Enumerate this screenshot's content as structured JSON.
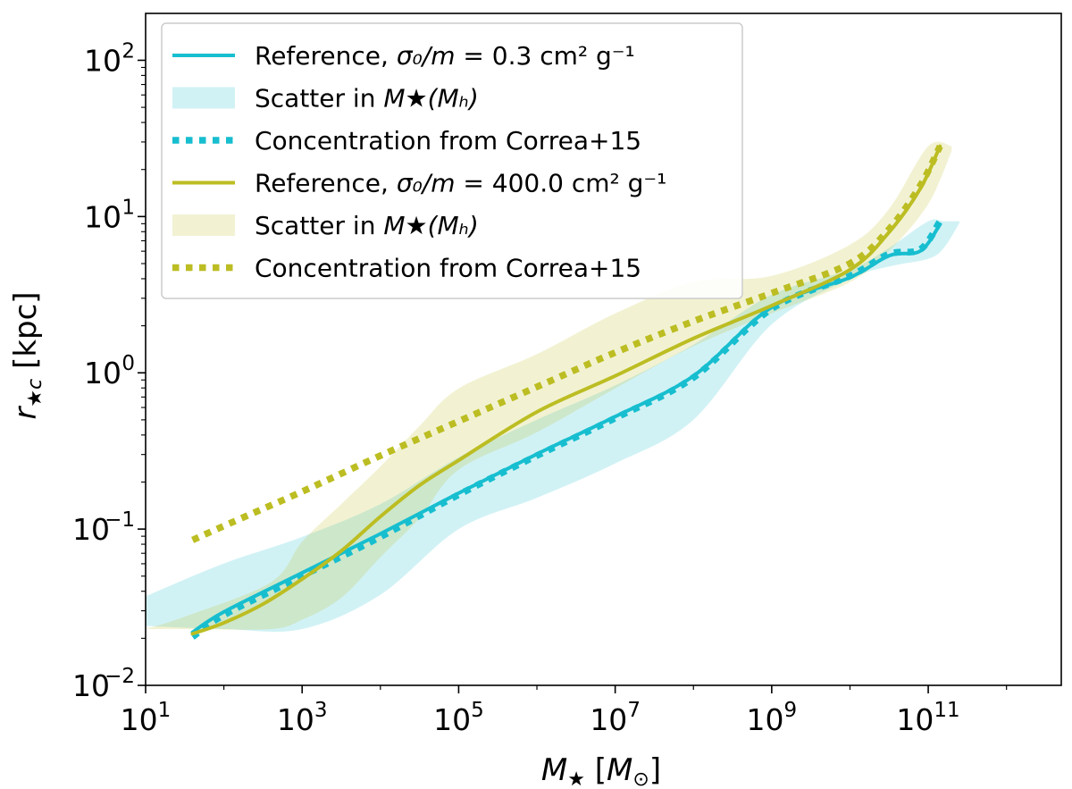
{
  "chart_data": {
    "type": "line",
    "xscale": "log",
    "yscale": "log",
    "xlim_exp": [
      1,
      12.7
    ],
    "ylim_exp": [
      -2,
      2.3
    ],
    "xlabel": "M★ [M⊙]",
    "ylabel": "r★c [kpc]",
    "xticks": [
      {
        "base": "10",
        "exp": "1",
        "value": 10
      },
      {
        "base": "10",
        "exp": "3",
        "value": 1000
      },
      {
        "base": "10",
        "exp": "5",
        "value": 100000
      },
      {
        "base": "10",
        "exp": "7",
        "value": 10000000
      },
      {
        "base": "10",
        "exp": "9",
        "value": 1000000000
      },
      {
        "base": "10",
        "exp": "11",
        "value": 100000000000
      }
    ],
    "yticks": [
      {
        "base": "10",
        "exp": "−2",
        "value": 0.01
      },
      {
        "base": "10",
        "exp": "−1",
        "value": 0.1
      },
      {
        "base": "10",
        "exp": "0",
        "value": 1
      },
      {
        "base": "10",
        "exp": "1",
        "value": 10
      },
      {
        "base": "10",
        "exp": "2",
        "value": 100
      }
    ],
    "colors": {
      "cyan": "#17becf",
      "olive": "#bcbd22"
    },
    "legend": {
      "position": "top-left",
      "entries": [
        {
          "pre": "Reference, ",
          "math": "σ₀/m",
          "post": " = 0.3 cm² g⁻¹",
          "style": "solid",
          "color": "#17becf"
        },
        {
          "pre": "Scatter in ",
          "math": "M★(Mₕ)",
          "post": "",
          "style": "band",
          "color": "#17becf"
        },
        {
          "pre": "Concentration from Correa+15",
          "math": "",
          "post": "",
          "style": "dotted",
          "color": "#17becf"
        },
        {
          "pre": "Reference, ",
          "math": "σ₀/m",
          "post": " = 400.0 cm² g⁻¹",
          "style": "solid",
          "color": "#bcbd22"
        },
        {
          "pre": "Scatter in ",
          "math": "M★(Mₕ)",
          "post": "",
          "style": "band",
          "color": "#bcbd22"
        },
        {
          "pre": "Concentration from Correa+15",
          "math": "",
          "post": "",
          "style": "dotted",
          "color": "#bcbd22"
        }
      ]
    },
    "series": [
      {
        "name": "Reference, σ₀/m = 0.3 cm² g⁻¹",
        "color": "#17becf",
        "style": "solid",
        "log_x": [
          1.6,
          2,
          3,
          4,
          5,
          6,
          7,
          8,
          9,
          10,
          10.5,
          10.9,
          11.15
        ],
        "log_y": [
          -1.66,
          -1.53,
          -1.28,
          -1.03,
          -0.77,
          -0.52,
          -0.28,
          -0.02,
          0.42,
          0.61,
          0.75,
          0.78,
          0.95
        ]
      },
      {
        "name": "Concentration from Correa+15 (σ₀/m = 0.3 cm² g⁻¹)",
        "color": "#17becf",
        "style": "dotted",
        "log_x": [
          1.6,
          2,
          3,
          4,
          5,
          6,
          7,
          8,
          9,
          10,
          10.5,
          10.9,
          11.15
        ],
        "log_y": [
          -1.69,
          -1.55,
          -1.3,
          -1.05,
          -0.78,
          -0.53,
          -0.29,
          -0.03,
          0.41,
          0.62,
          0.76,
          0.79,
          0.97
        ]
      },
      {
        "name": "Reference, σ₀/m = 400.0 cm² g⁻¹",
        "color": "#bcbd22",
        "style": "solid",
        "log_x": [
          1.6,
          2,
          2.5,
          3,
          3.5,
          4,
          4.5,
          5,
          6,
          7,
          8,
          9,
          10,
          10.5,
          10.9,
          11.15
        ],
        "log_y": [
          -1.67,
          -1.6,
          -1.48,
          -1.32,
          -1.14,
          -0.92,
          -0.72,
          -0.56,
          -0.25,
          -0.02,
          0.22,
          0.43,
          0.66,
          0.9,
          1.18,
          1.45
        ]
      },
      {
        "name": "Concentration from Correa+15 (σ₀/m = 400.0 cm² g⁻¹)",
        "color": "#bcbd22",
        "style": "dotted",
        "log_x": [
          1.6,
          2,
          3,
          4,
          5,
          6,
          7,
          8,
          9,
          10,
          10.5,
          10.9,
          11.15
        ],
        "log_y": [
          -1.07,
          -0.98,
          -0.76,
          -0.53,
          -0.31,
          -0.09,
          0.13,
          0.33,
          0.51,
          0.7,
          0.92,
          1.2,
          1.45
        ]
      }
    ],
    "bands": [
      {
        "name": "Scatter in M★(Mₕ) (σ₀/m = 0.3 cm² g⁻¹)",
        "color": "#17becf",
        "log_x": [
          1,
          2,
          3,
          4,
          5,
          6,
          7,
          8,
          9,
          10,
          10.5,
          11,
          11.2,
          11.4
        ],
        "log_y_low": [
          -1.62,
          -1.64,
          -1.64,
          -1.42,
          -1.0,
          -0.8,
          -0.58,
          -0.3,
          0.31,
          0.6,
          0.68,
          0.73,
          0.8,
          0.96
        ],
        "log_y_high": [
          -1.43,
          -1.22,
          -1.05,
          -0.84,
          -0.54,
          -0.3,
          -0.08,
          0.18,
          0.5,
          0.66,
          0.8,
          0.97,
          0.97,
          0.97
        ]
      },
      {
        "name": "Scatter in M★(Mₕ) (σ₀/m = 400.0 cm² g⁻¹)",
        "color": "#bcbd22",
        "log_x": [
          1,
          1.5,
          2.6,
          3,
          3.5,
          4,
          4.5,
          5,
          6,
          7,
          8,
          9,
          10,
          10.5,
          11,
          11.3
        ],
        "log_y_low": [
          -1.64,
          -1.64,
          -1.64,
          -1.58,
          -1.44,
          -1.18,
          -0.93,
          -0.62,
          -0.38,
          -0.1,
          0.17,
          0.38,
          0.58,
          0.78,
          1.08,
          1.42
        ],
        "log_y_high": [
          -1.64,
          -1.56,
          -1.34,
          -1.08,
          -0.84,
          -0.6,
          -0.34,
          -0.1,
          0.12,
          0.38,
          0.58,
          0.62,
          0.82,
          1.05,
          1.45,
          1.45
        ]
      }
    ]
  }
}
